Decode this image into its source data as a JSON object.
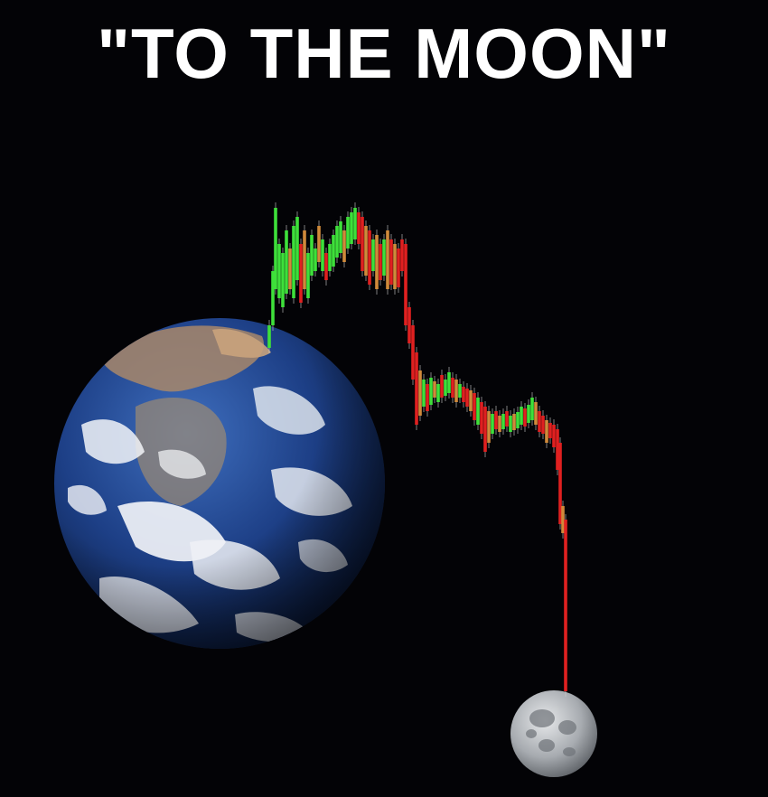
{
  "title": "\"TO THE MOON\"",
  "icons": {
    "earth": "earth-icon",
    "moon": "moon-icon"
  },
  "colors": {
    "background": "#030306",
    "title": "#ffffff",
    "candle_up": "#3ee03a",
    "candle_down": "#e02020",
    "candle_neutral": "#d08a3a",
    "earth_ocean": "#1d3f86",
    "moon_surface": "#9ea2a8"
  }
}
